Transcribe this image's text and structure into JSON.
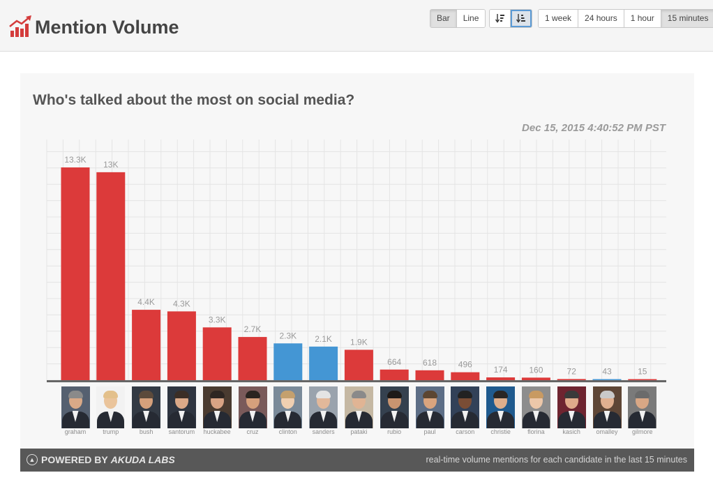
{
  "header": {
    "title": "Mention Volume",
    "chart_types": [
      "Bar",
      "Line"
    ],
    "chart_type_selected": "Bar",
    "sort_icons": [
      "sort-desc-icon",
      "sort-asc-icon"
    ],
    "ranges": [
      "1 week",
      "24 hours",
      "1 hour",
      "15 minutes"
    ],
    "range_selected": "15 minutes"
  },
  "chart_title": "Who's talked about the most on social media?",
  "timestamp": "Dec 15, 2015 4:40:52 PM PST",
  "colors": {
    "republican": "#dc3a3a",
    "democrat": "#4496d4",
    "axis": "#666666",
    "label": "#9a9a9a"
  },
  "chart_data": {
    "type": "bar",
    "title": "Who's talked about the most on social media?",
    "categories": [
      "graham",
      "trump",
      "bush",
      "santorum",
      "huckabee",
      "cruz",
      "clinton",
      "sanders",
      "pataki",
      "rubio",
      "paul",
      "carson",
      "christie",
      "florina",
      "kasich",
      "omalley",
      "gilmore"
    ],
    "values": [
      13300,
      13000,
      4400,
      4300,
      3300,
      2700,
      2300,
      2100,
      1900,
      664,
      618,
      496,
      174,
      160,
      72,
      43,
      15
    ],
    "value_labels": [
      "13.3K",
      "13K",
      "4.4K",
      "4.3K",
      "3.3K",
      "2.7K",
      "2.3K",
      "2.1K",
      "1.9K",
      "664",
      "618",
      "496",
      "174",
      "160",
      "72",
      "43",
      "15"
    ],
    "party": [
      "R",
      "R",
      "R",
      "R",
      "R",
      "R",
      "D",
      "D",
      "R",
      "R",
      "R",
      "R",
      "R",
      "R",
      "R",
      "D",
      "R"
    ],
    "xlabel": "",
    "ylabel": "",
    "ylim": [
      0,
      14000
    ],
    "grid": true,
    "legend": "none"
  },
  "footer": {
    "powered_prefix": "POWERED BY",
    "powered_brand": "AKUDA LABS",
    "note": "real-time volume mentions for each candidate in the last 15 minutes"
  }
}
